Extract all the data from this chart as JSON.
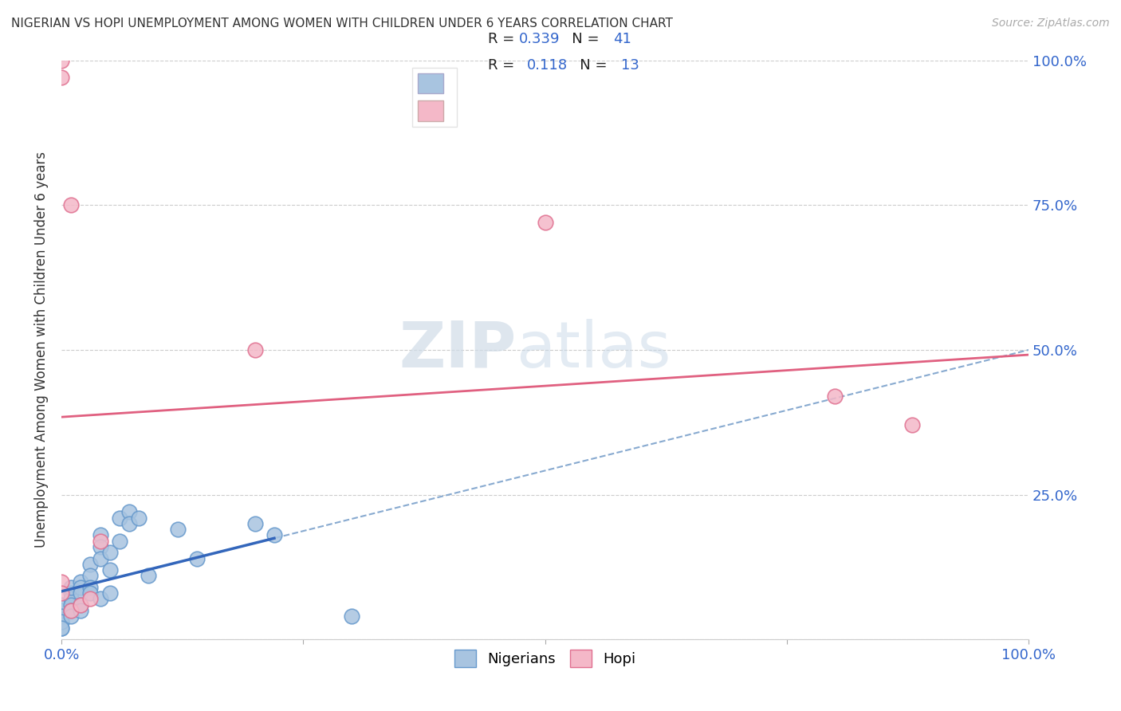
{
  "title": "NIGERIAN VS HOPI UNEMPLOYMENT AMONG WOMEN WITH CHILDREN UNDER 6 YEARS CORRELATION CHART",
  "source": "Source: ZipAtlas.com",
  "ylabel": "Unemployment Among Women with Children Under 6 years",
  "xlim": [
    0,
    1
  ],
  "ylim": [
    0,
    1
  ],
  "xticks": [
    0.0,
    0.25,
    0.5,
    0.75,
    1.0
  ],
  "yticks": [
    0.0,
    0.25,
    0.5,
    0.75,
    1.0
  ],
  "xticklabels": [
    "0.0%",
    "",
    "",
    "",
    "100.0%"
  ],
  "right_yticklabels": [
    "",
    "25.0%",
    "50.0%",
    "75.0%",
    "100.0%"
  ],
  "nigerian_x": [
    0.0,
    0.0,
    0.0,
    0.0,
    0.0,
    0.0,
    0.0,
    0.0,
    0.01,
    0.01,
    0.01,
    0.01,
    0.01,
    0.01,
    0.02,
    0.02,
    0.02,
    0.02,
    0.02,
    0.03,
    0.03,
    0.03,
    0.03,
    0.04,
    0.04,
    0.04,
    0.04,
    0.05,
    0.05,
    0.05,
    0.06,
    0.06,
    0.07,
    0.07,
    0.08,
    0.09,
    0.12,
    0.14,
    0.2,
    0.22,
    0.3
  ],
  "nigerian_y": [
    0.04,
    0.03,
    0.05,
    0.02,
    0.06,
    0.04,
    0.03,
    0.02,
    0.08,
    0.07,
    0.06,
    0.05,
    0.09,
    0.04,
    0.1,
    0.09,
    0.08,
    0.06,
    0.05,
    0.13,
    0.11,
    0.09,
    0.08,
    0.18,
    0.16,
    0.14,
    0.07,
    0.15,
    0.12,
    0.08,
    0.21,
    0.17,
    0.22,
    0.2,
    0.21,
    0.11,
    0.19,
    0.14,
    0.2,
    0.18,
    0.04
  ],
  "hopi_x": [
    0.0,
    0.0,
    0.01,
    0.01,
    0.02,
    0.03,
    0.04,
    0.2,
    0.5,
    0.8,
    0.88,
    0.0,
    0.0
  ],
  "hopi_y": [
    1.0,
    0.97,
    0.75,
    0.05,
    0.06,
    0.07,
    0.17,
    0.5,
    0.72,
    0.42,
    0.37,
    0.1,
    0.08
  ],
  "nigerian_color": "#a8c4e0",
  "nigerian_edge": "#6699cc",
  "hopi_color": "#f4b8c8",
  "hopi_edge": "#e07090",
  "nigerian_line_color": "#3366bb",
  "hopi_line_color": "#e06080",
  "dashed_line_color": "#88aad0",
  "R_nigerian": 0.339,
  "N_nigerian": 41,
  "R_hopi": 0.118,
  "N_hopi": 13,
  "watermark_zip": "ZIP",
  "watermark_atlas": "atlas",
  "background_color": "#ffffff",
  "grid_color": "#cccccc",
  "title_fontsize": 11,
  "source_fontsize": 10,
  "tick_fontsize": 13,
  "ylabel_fontsize": 12,
  "legend_fontsize": 13
}
